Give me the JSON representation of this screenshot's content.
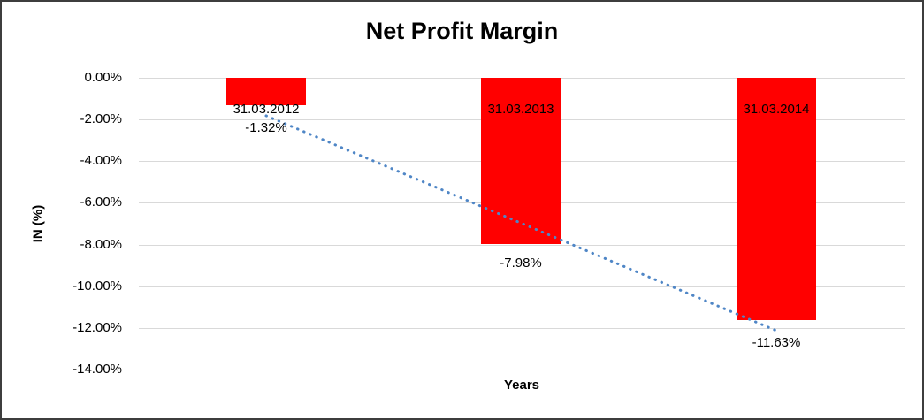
{
  "chart": {
    "title": "Net Profit Margin",
    "y_axis_title": "IN (%)",
    "x_axis_title": "Years"
  },
  "chart_data": {
    "type": "bar",
    "title": "Net Profit Margin",
    "xlabel": "Years",
    "ylabel": "IN (%)",
    "categories": [
      "31.03.2012",
      "31.03.2013",
      "31.03.2014"
    ],
    "series": [
      {
        "name": "Net Profit Margin",
        "values": [
          -1.32,
          -7.98,
          -11.63
        ]
      }
    ],
    "data_labels": [
      "-1.32%",
      "-7.98%",
      "-11.63%"
    ],
    "y_ticks": [
      "0.00%",
      "-2.00%",
      "-4.00%",
      "-6.00%",
      "-8.00%",
      "-10.00%",
      "-12.00%",
      "-14.00%"
    ],
    "ylim": [
      -14,
      0
    ],
    "grid": true,
    "legend": "none",
    "bar_color": "#ff0000",
    "gridline_color": "#d9d9d9",
    "trendline": {
      "type": "linear",
      "style": "dotted",
      "color": "#4f86c6",
      "from_percent": -1.82,
      "to_percent": -12.13
    }
  }
}
